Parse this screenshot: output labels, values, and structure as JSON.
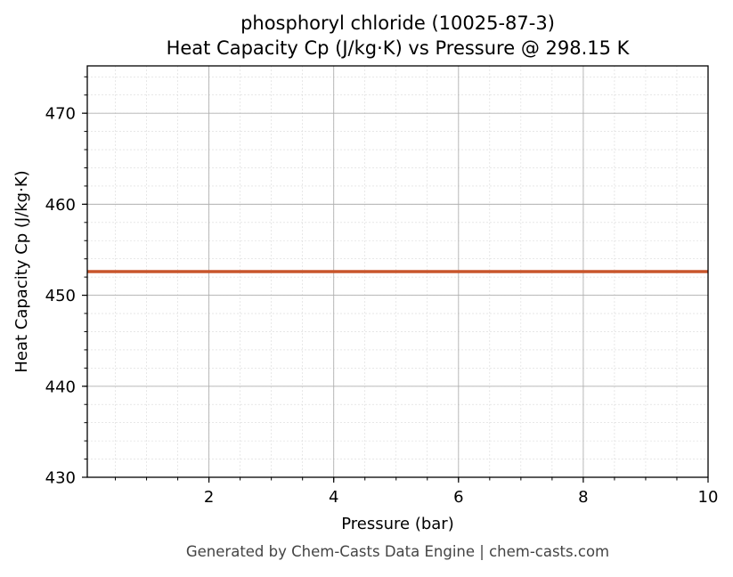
{
  "chart_data": {
    "type": "line",
    "title_line1": "phosphoryl chloride (10025-87-3)",
    "title_line2": "Heat Capacity Cp (J/kg·K) vs Pressure @ 298.15 K",
    "xlabel": "Pressure (bar)",
    "ylabel": "Heat Capacity Cp (J/kg·K)",
    "xlim": [
      0.05,
      10
    ],
    "ylim": [
      430,
      475.2
    ],
    "x_ticks": [
      2,
      4,
      6,
      8,
      10
    ],
    "y_ticks": [
      430,
      440,
      450,
      460,
      470
    ],
    "x_minor_step": 0.5,
    "y_minor_step": 2,
    "grid": true,
    "series": [
      {
        "color": "#c8552b",
        "x": [
          0.05,
          10
        ],
        "y": [
          452.6,
          452.6
        ]
      }
    ],
    "footer": "Generated by Chem-Casts Data Engine | chem-casts.com"
  }
}
